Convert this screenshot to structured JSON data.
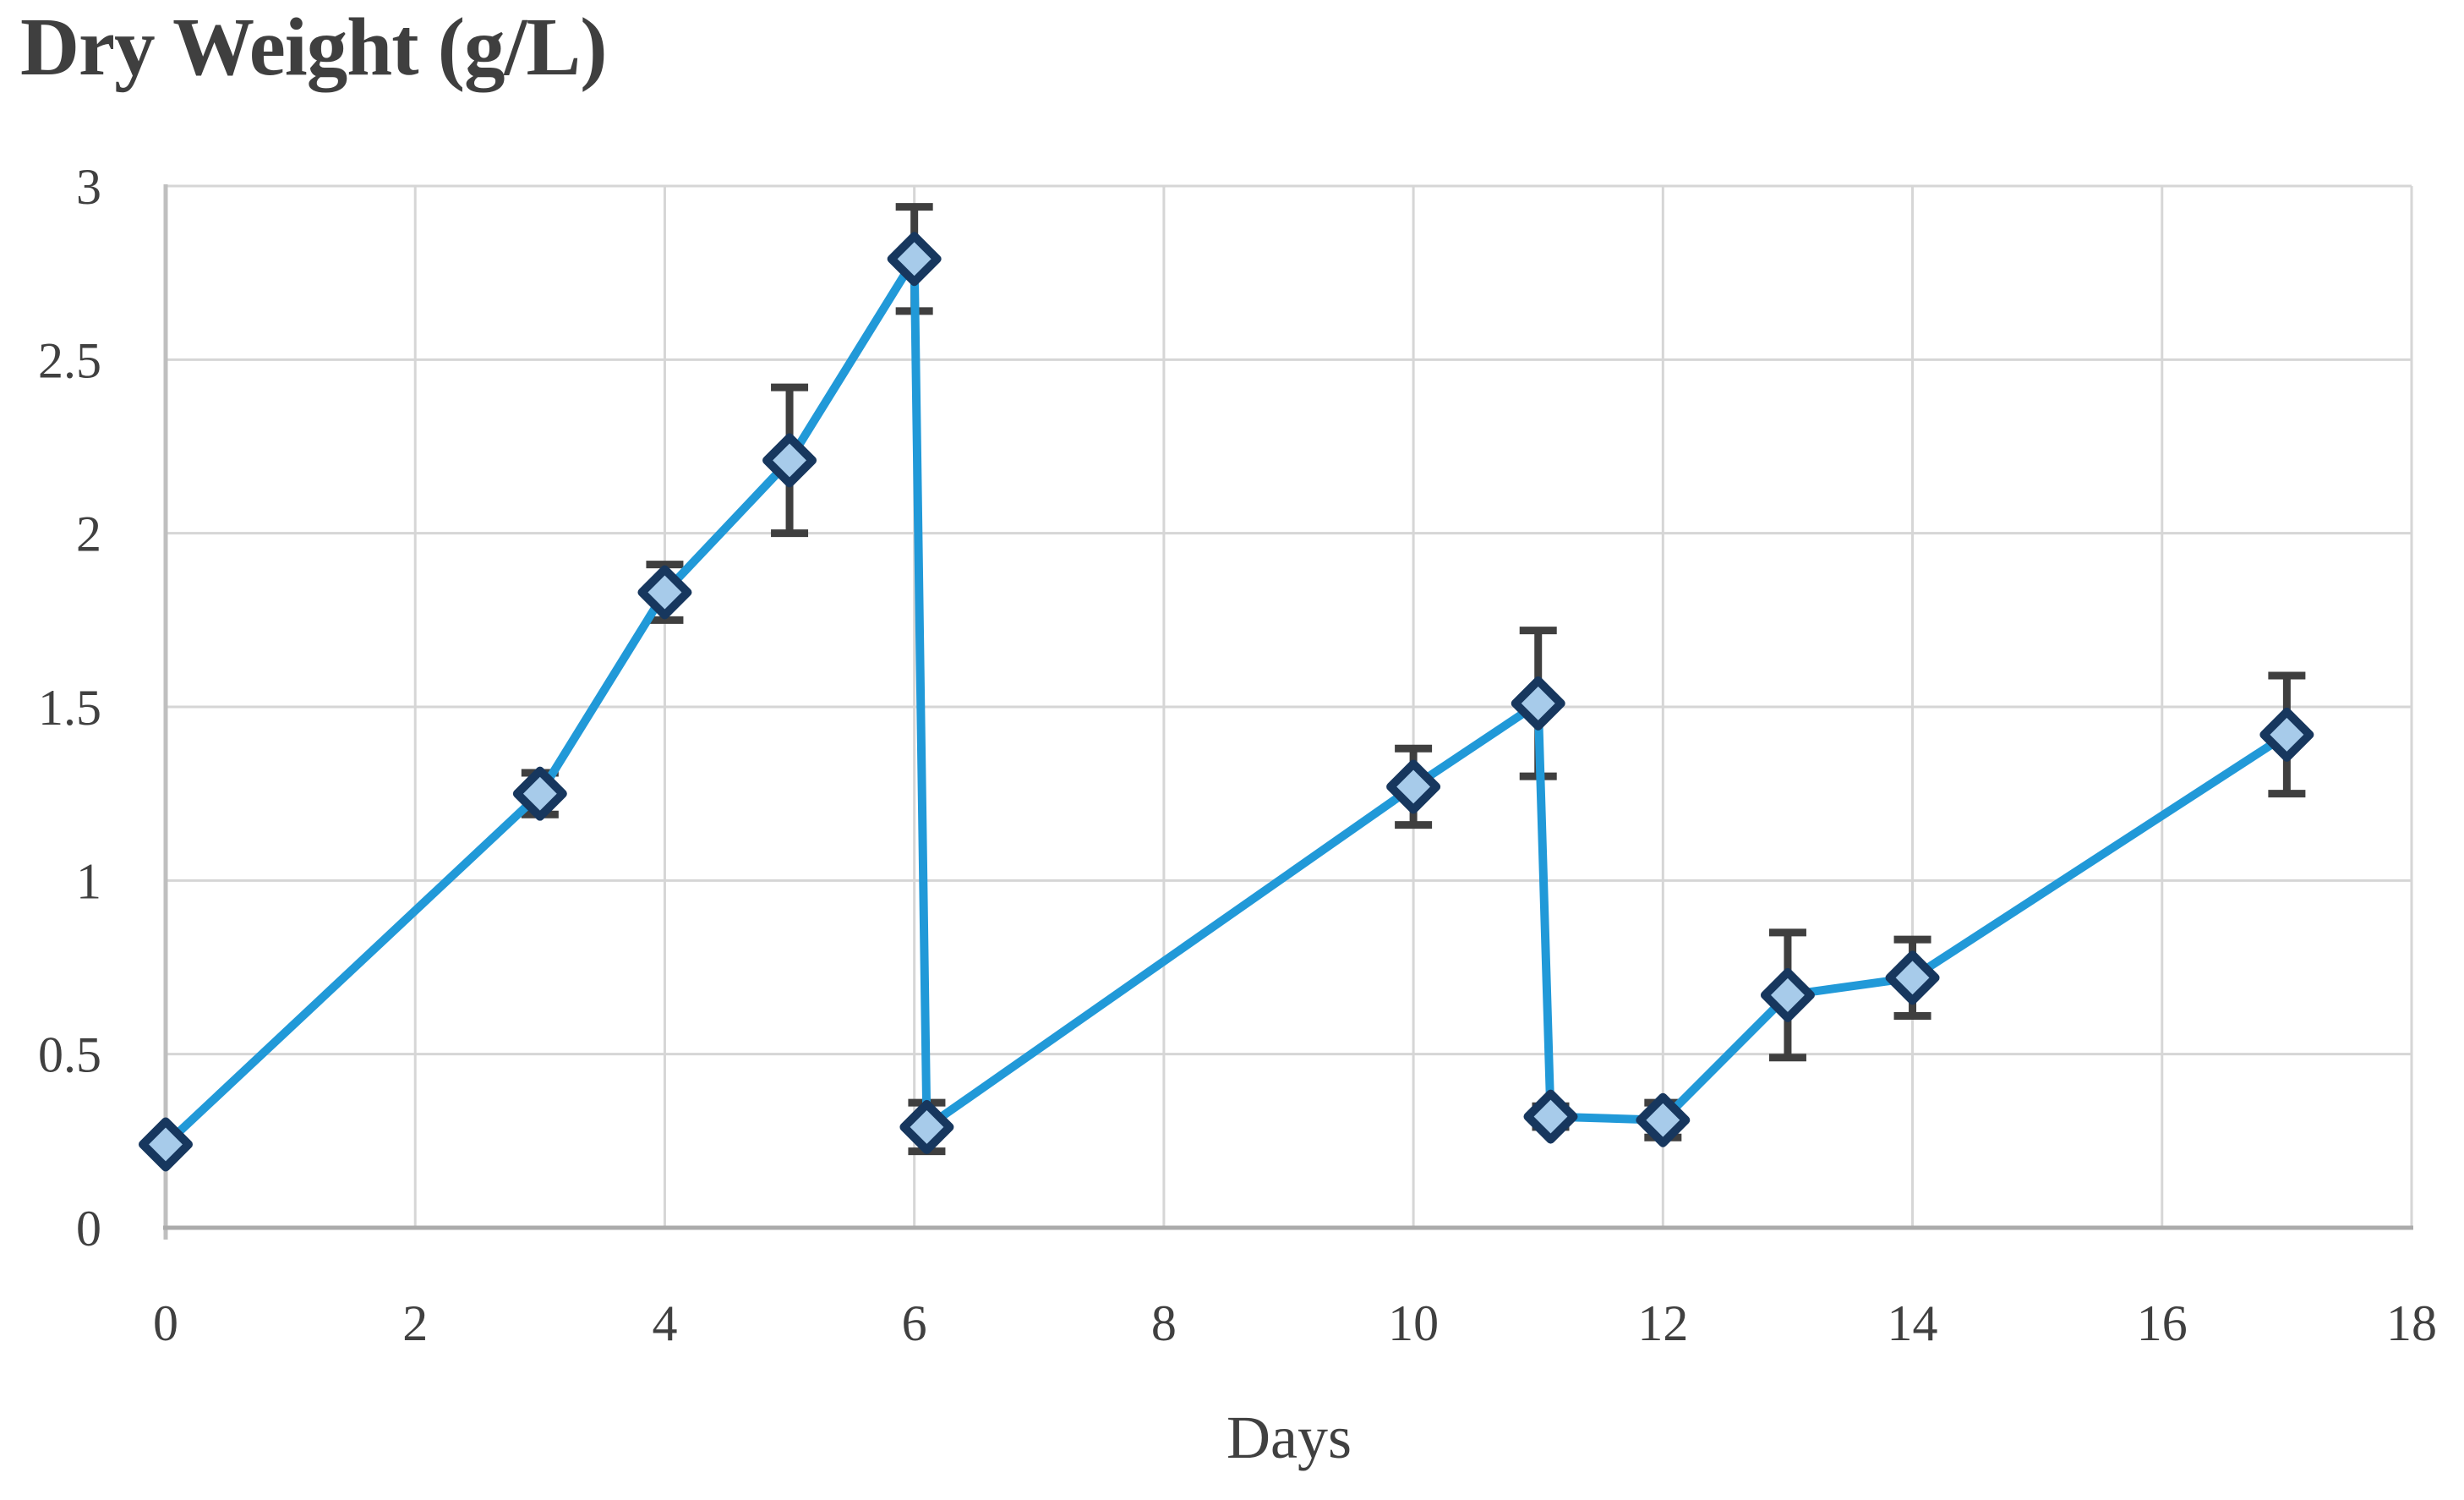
{
  "chart_data": {
    "type": "line",
    "title": "Dry Weight (g/L)",
    "xlabel": "Days",
    "ylabel": "",
    "xlim": [
      0,
      18
    ],
    "ylim": [
      0,
      3
    ],
    "x_ticks": [
      0,
      2,
      4,
      6,
      8,
      10,
      12,
      14,
      16,
      18
    ],
    "x_tick_labels": [
      "0",
      "2",
      "4",
      "6",
      "8",
      "10",
      "12",
      "14",
      "16",
      "18"
    ],
    "y_ticks": [
      0,
      0.5,
      1,
      1.5,
      2,
      2.5,
      3
    ],
    "y_tick_labels": [
      "0",
      "0.5",
      "1",
      "1.5",
      "2",
      "2.5",
      "3"
    ],
    "grid": true,
    "legend": "none",
    "series": [
      {
        "name": "Dry Weight (g/L)",
        "marker": "diamond",
        "points": [
          {
            "x": 0,
            "y": 0.24,
            "err": 0
          },
          {
            "x": 3,
            "y": 1.25,
            "err": 0.06
          },
          {
            "x": 4,
            "y": 1.83,
            "err": 0.08
          },
          {
            "x": 5,
            "y": 2.21,
            "err": 0.21
          },
          {
            "x": 6,
            "y": 2.79,
            "err": 0.15
          },
          {
            "x": 6.1,
            "y": 0.29,
            "err": 0.07
          },
          {
            "x": 10,
            "y": 1.27,
            "err": 0.11
          },
          {
            "x": 11,
            "y": 1.51,
            "err": 0.21
          },
          {
            "x": 11.1,
            "y": 0.32,
            "err": 0.03
          },
          {
            "x": 12,
            "y": 0.31,
            "err": 0.05
          },
          {
            "x": 13,
            "y": 0.67,
            "err": 0.18
          },
          {
            "x": 14,
            "y": 0.72,
            "err": 0.11
          },
          {
            "x": 17,
            "y": 1.42,
            "err": 0.17
          }
        ]
      }
    ],
    "colors": {
      "line": "#2199d8",
      "marker_fill": "#a7cbea",
      "marker_stroke": "#17375e",
      "error_bar": "#3f3f3f",
      "gridline": "#d6d6d6",
      "axis_line": "#bfbfbf",
      "bottom_axis_line": "#ababab",
      "text": "#404040"
    }
  }
}
